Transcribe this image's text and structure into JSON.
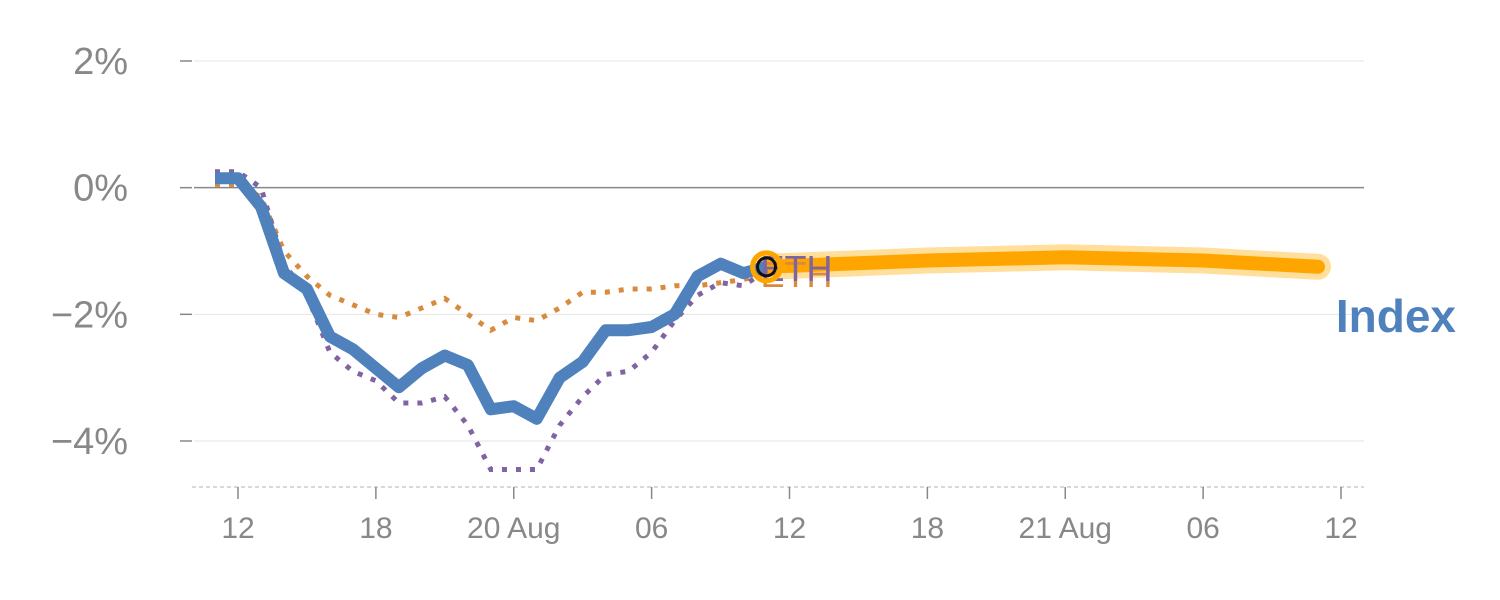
{
  "chart_data": {
    "type": "line",
    "y_ticks": [
      {
        "value": 2,
        "label": "2%"
      },
      {
        "value": 0,
        "label": "0%"
      },
      {
        "value": -2,
        "label": "−2%"
      },
      {
        "value": -4,
        "label": "−4%"
      }
    ],
    "ylim": [
      -4.7,
      2.0
    ],
    "xlim": [
      0,
      48
    ],
    "x_ticks": [
      {
        "x": 0,
        "label": "12"
      },
      {
        "x": 6,
        "label": "18"
      },
      {
        "x": 12,
        "label": "20 Aug"
      },
      {
        "x": 18,
        "label": "06"
      },
      {
        "x": 24,
        "label": "12"
      },
      {
        "x": 30,
        "label": "18"
      },
      {
        "x": 36,
        "label": "21 Aug"
      },
      {
        "x": 42,
        "label": "06"
      },
      {
        "x": 48,
        "label": "12"
      }
    ],
    "grid": true,
    "series": [
      {
        "name": "Index",
        "role": "main",
        "color": "#4f81bd",
        "x": [
          -1,
          0,
          1,
          2,
          3,
          4,
          5,
          6,
          7,
          8,
          9,
          10,
          11,
          12,
          13,
          14,
          15,
          16,
          17,
          18,
          19,
          20,
          21,
          22,
          23
        ],
        "y": [
          0.15,
          0.15,
          -0.3,
          -1.35,
          -1.6,
          -2.35,
          -2.55,
          -2.85,
          -3.15,
          -2.85,
          -2.65,
          -2.8,
          -3.5,
          -3.45,
          -3.65,
          -3.0,
          -2.75,
          -2.25,
          -2.25,
          -2.2,
          -2.0,
          -1.4,
          -1.2,
          -1.35,
          -1.25
        ]
      },
      {
        "name": "",
        "role": "dotted-purple",
        "color": "#8064a2",
        "x": [
          -1,
          0,
          1,
          2,
          3,
          4,
          5,
          6,
          7,
          8,
          9,
          10,
          11,
          12,
          13,
          14,
          15,
          16,
          17,
          18,
          19,
          20,
          21,
          22,
          23
        ],
        "y": [
          0.25,
          0.25,
          0.0,
          -1.2,
          -1.7,
          -2.6,
          -2.9,
          -3.05,
          -3.4,
          -3.4,
          -3.3,
          -3.75,
          -4.45,
          -4.45,
          -4.45,
          -3.75,
          -3.3,
          -2.95,
          -2.9,
          -2.6,
          -2.1,
          -1.7,
          -1.5,
          -1.55,
          -1.3
        ]
      },
      {
        "name": "",
        "role": "dotted-orange",
        "color": "#d98a3c",
        "x": [
          -1,
          0,
          1,
          2,
          3,
          4,
          5,
          6,
          7,
          8,
          9,
          10,
          11,
          12,
          13,
          14,
          15,
          16,
          17,
          18,
          19,
          20,
          21,
          22,
          23
        ],
        "y": [
          0.05,
          0.05,
          -0.15,
          -1.0,
          -1.4,
          -1.7,
          -1.85,
          -2.0,
          -2.05,
          -1.9,
          -1.75,
          -2.0,
          -2.25,
          -2.05,
          -2.1,
          -1.9,
          -1.65,
          -1.65,
          -1.6,
          -1.6,
          -1.55,
          -1.55,
          -1.5,
          -1.45,
          -1.35
        ]
      },
      {
        "name": "",
        "role": "forecast",
        "color": "#ffa500",
        "x": [
          23,
          30,
          36,
          42,
          47
        ],
        "y": [
          -1.25,
          -1.15,
          -1.1,
          -1.15,
          -1.25
        ]
      }
    ],
    "marker": {
      "x": 23,
      "y": -1.25,
      "label": "ETH",
      "color": "#ffa500"
    },
    "series_label": {
      "text": "Index",
      "color": "#4f81bd"
    }
  }
}
